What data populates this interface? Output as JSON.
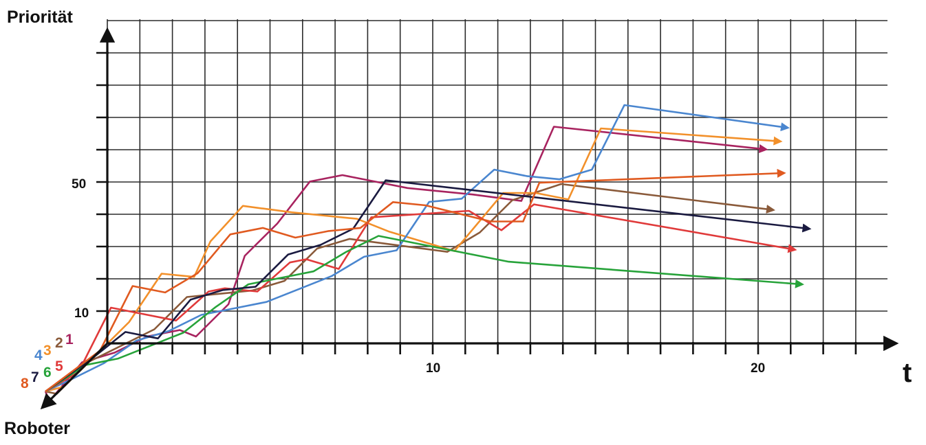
{
  "chart_data": {
    "type": "line",
    "title": "",
    "ylabel": "Priorität",
    "xlabel": "t",
    "zlabel": "Roboter",
    "x_ticks": [
      10,
      20
    ],
    "y_ticks": [
      10,
      50
    ],
    "xlim": [
      0,
      23
    ],
    "ylim": [
      0,
      102
    ],
    "grid": true,
    "legend": "robot numbers along depth axis",
    "series": [
      {
        "name": "1",
        "color": "#a8235f",
        "depth": 8,
        "x": [
          0,
          1,
          2,
          3,
          4,
          4.5,
          5.5,
          6,
          7,
          8,
          9,
          10,
          11,
          13,
          14.5,
          15.5,
          22
        ],
        "y": [
          0,
          12,
          15,
          20,
          22,
          20,
          30,
          45,
          55,
          68,
          70,
          68,
          66,
          64,
          62,
          85,
          78
        ]
      },
      {
        "name": "2",
        "color": "#8a5a3a",
        "depth": 7,
        "x": [
          0,
          1,
          2,
          3,
          4,
          5,
          6,
          7,
          8,
          9,
          12,
          13,
          14,
          15.5,
          22
        ],
        "y": [
          0,
          10,
          15,
          20,
          30,
          31,
          32,
          35,
          45,
          48,
          44,
          50,
          60,
          65,
          57
        ]
      },
      {
        "name": "3",
        "color": "#f2902a",
        "depth": 6,
        "x": [
          0,
          1,
          2,
          3,
          4,
          4.5,
          5.5,
          7,
          9,
          10,
          11,
          12,
          13.5,
          14.5,
          15.5,
          16.5,
          22
        ],
        "y": [
          0,
          10,
          20,
          35,
          34,
          45,
          56,
          54,
          52,
          48,
          45,
          42,
          60,
          60,
          58,
          80,
          76
        ]
      },
      {
        "name": "4",
        "color": "#4a86cf",
        "depth": 5,
        "x": [
          0,
          1,
          2,
          3,
          4,
          5,
          6,
          7,
          8,
          9,
          10,
          11,
          12,
          13,
          14,
          15,
          16,
          17,
          22
        ],
        "y": [
          0,
          5,
          12,
          15,
          20,
          22,
          24,
          28,
          32,
          38,
          40,
          55,
          56,
          65,
          63,
          62,
          65,
          85,
          78
        ]
      },
      {
        "name": "5",
        "color": "#e03a3a",
        "depth": 4,
        "x": [
          0,
          1,
          2,
          3,
          4,
          4.5,
          5.5,
          6.5,
          7,
          8,
          9,
          12,
          13,
          14,
          22
        ],
        "y": [
          0,
          20,
          18,
          16,
          25,
          26,
          25,
          34,
          35,
          32,
          48,
          50,
          44,
          52,
          38
        ]
      },
      {
        "name": "6",
        "color": "#27a33a",
        "depth": 3,
        "x": [
          0,
          1,
          2,
          3,
          4,
          5,
          6,
          7,
          8,
          9,
          13,
          22
        ],
        "y": [
          0,
          2,
          6,
          10,
          18,
          25,
          27,
          29,
          35,
          40,
          32,
          25
        ]
      },
      {
        "name": "7",
        "color": "#1a1a40",
        "depth": 2,
        "x": [
          0,
          1,
          2,
          3,
          4,
          5,
          6,
          7,
          8,
          9,
          22
        ],
        "y": [
          0,
          8,
          6,
          18,
          21,
          22,
          32,
          35,
          40,
          55,
          40
        ]
      },
      {
        "name": "8",
        "color": "#e05a20",
        "depth": 1,
        "x": [
          0,
          1,
          2,
          3,
          4,
          5,
          6,
          7,
          8,
          9,
          10,
          12,
          13,
          13.5,
          21
        ],
        "y": [
          0,
          20,
          18,
          24,
          36,
          38,
          35,
          37,
          38,
          46,
          45,
          40,
          40,
          52,
          55
        ]
      }
    ]
  }
}
